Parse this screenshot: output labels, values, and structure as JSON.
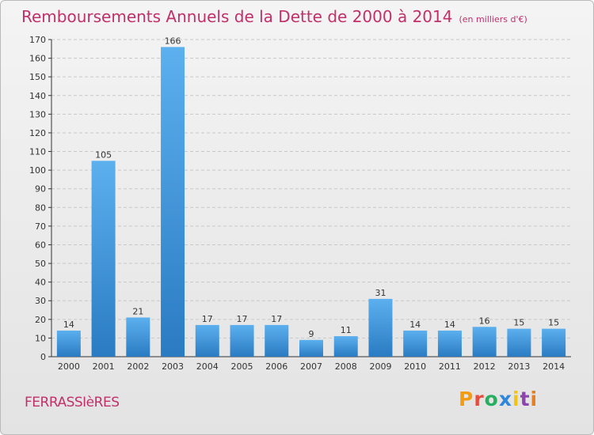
{
  "header": {
    "title": "Remboursements Annuels de la Dette de 2000 à 2014",
    "unit": "(en milliers d'€)"
  },
  "footer": {
    "place": "FERRASSIèRES",
    "brand": "Proxiti"
  },
  "colors": {
    "title": "#c0306a",
    "bar_top": "#5cb0ee",
    "bar_bottom": "#2a7bc2",
    "grid": "#c8c8c8",
    "axis": "#333333",
    "logo_letters": [
      "#f39c12",
      "#e74c3c",
      "#27ae60",
      "#2e86de",
      "#f1c40f",
      "#8e44ad",
      "#e67e22"
    ]
  },
  "chart_data": {
    "type": "bar",
    "title": "Remboursements Annuels de la Dette de 2000 à 2014",
    "subtitle": "(en milliers d'€)",
    "xlabel": "",
    "ylabel": "",
    "categories": [
      "2000",
      "2001",
      "2002",
      "2003",
      "2004",
      "2005",
      "2006",
      "2007",
      "2008",
      "2009",
      "2010",
      "2011",
      "2012",
      "2013",
      "2014"
    ],
    "values": [
      14,
      105,
      21,
      166,
      17,
      17,
      17,
      9,
      11,
      31,
      14,
      14,
      16,
      15,
      15
    ],
    "ylim": [
      0,
      170
    ],
    "yticks": [
      0,
      10,
      20,
      30,
      40,
      50,
      60,
      70,
      80,
      90,
      100,
      110,
      120,
      130,
      140,
      150,
      160,
      170
    ],
    "grid": true,
    "legend": "none"
  }
}
